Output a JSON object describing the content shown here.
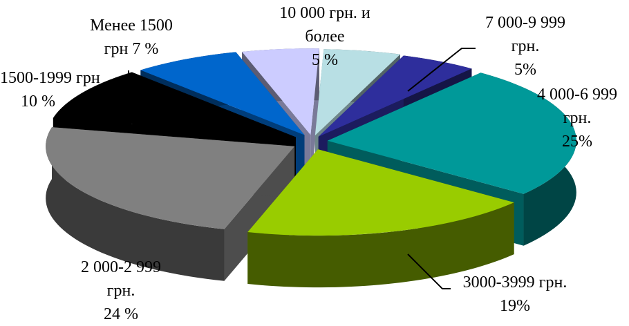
{
  "chart_data": {
    "type": "pie",
    "variant": "exploded-3d",
    "legend": "none",
    "slices": [
      {
        "label_lines": [
          "10 000 грн. и",
          "более",
          "5 %"
        ],
        "value": 5,
        "color": "#b8dfe4"
      },
      {
        "label_lines": [
          "7 000-9 999",
          "грн.",
          "5%"
        ],
        "value": 5,
        "color": "#2e2e9c"
      },
      {
        "label_lines": [
          "4 000-6 999",
          "грн.",
          "25%"
        ],
        "value": 25,
        "color": "#009999"
      },
      {
        "label_lines": [
          "3000-3999 грн.",
          "19%"
        ],
        "value": 19,
        "color": "#99cc00"
      },
      {
        "label_lines": [
          "2 000-2 999",
          "грн.",
          "24 %"
        ],
        "value": 24,
        "color": "#808080"
      },
      {
        "label_lines": [
          "1500-1999 грн",
          "10 %"
        ],
        "value": 10,
        "color": "#000000"
      },
      {
        "label_lines": [
          "Менее 1500",
          "грн 7 %"
        ],
        "value": 7,
        "color": "#0066cc"
      },
      {
        "label_lines": [
          ""
        ],
        "value": 5,
        "color": "#ccccff"
      }
    ]
  }
}
